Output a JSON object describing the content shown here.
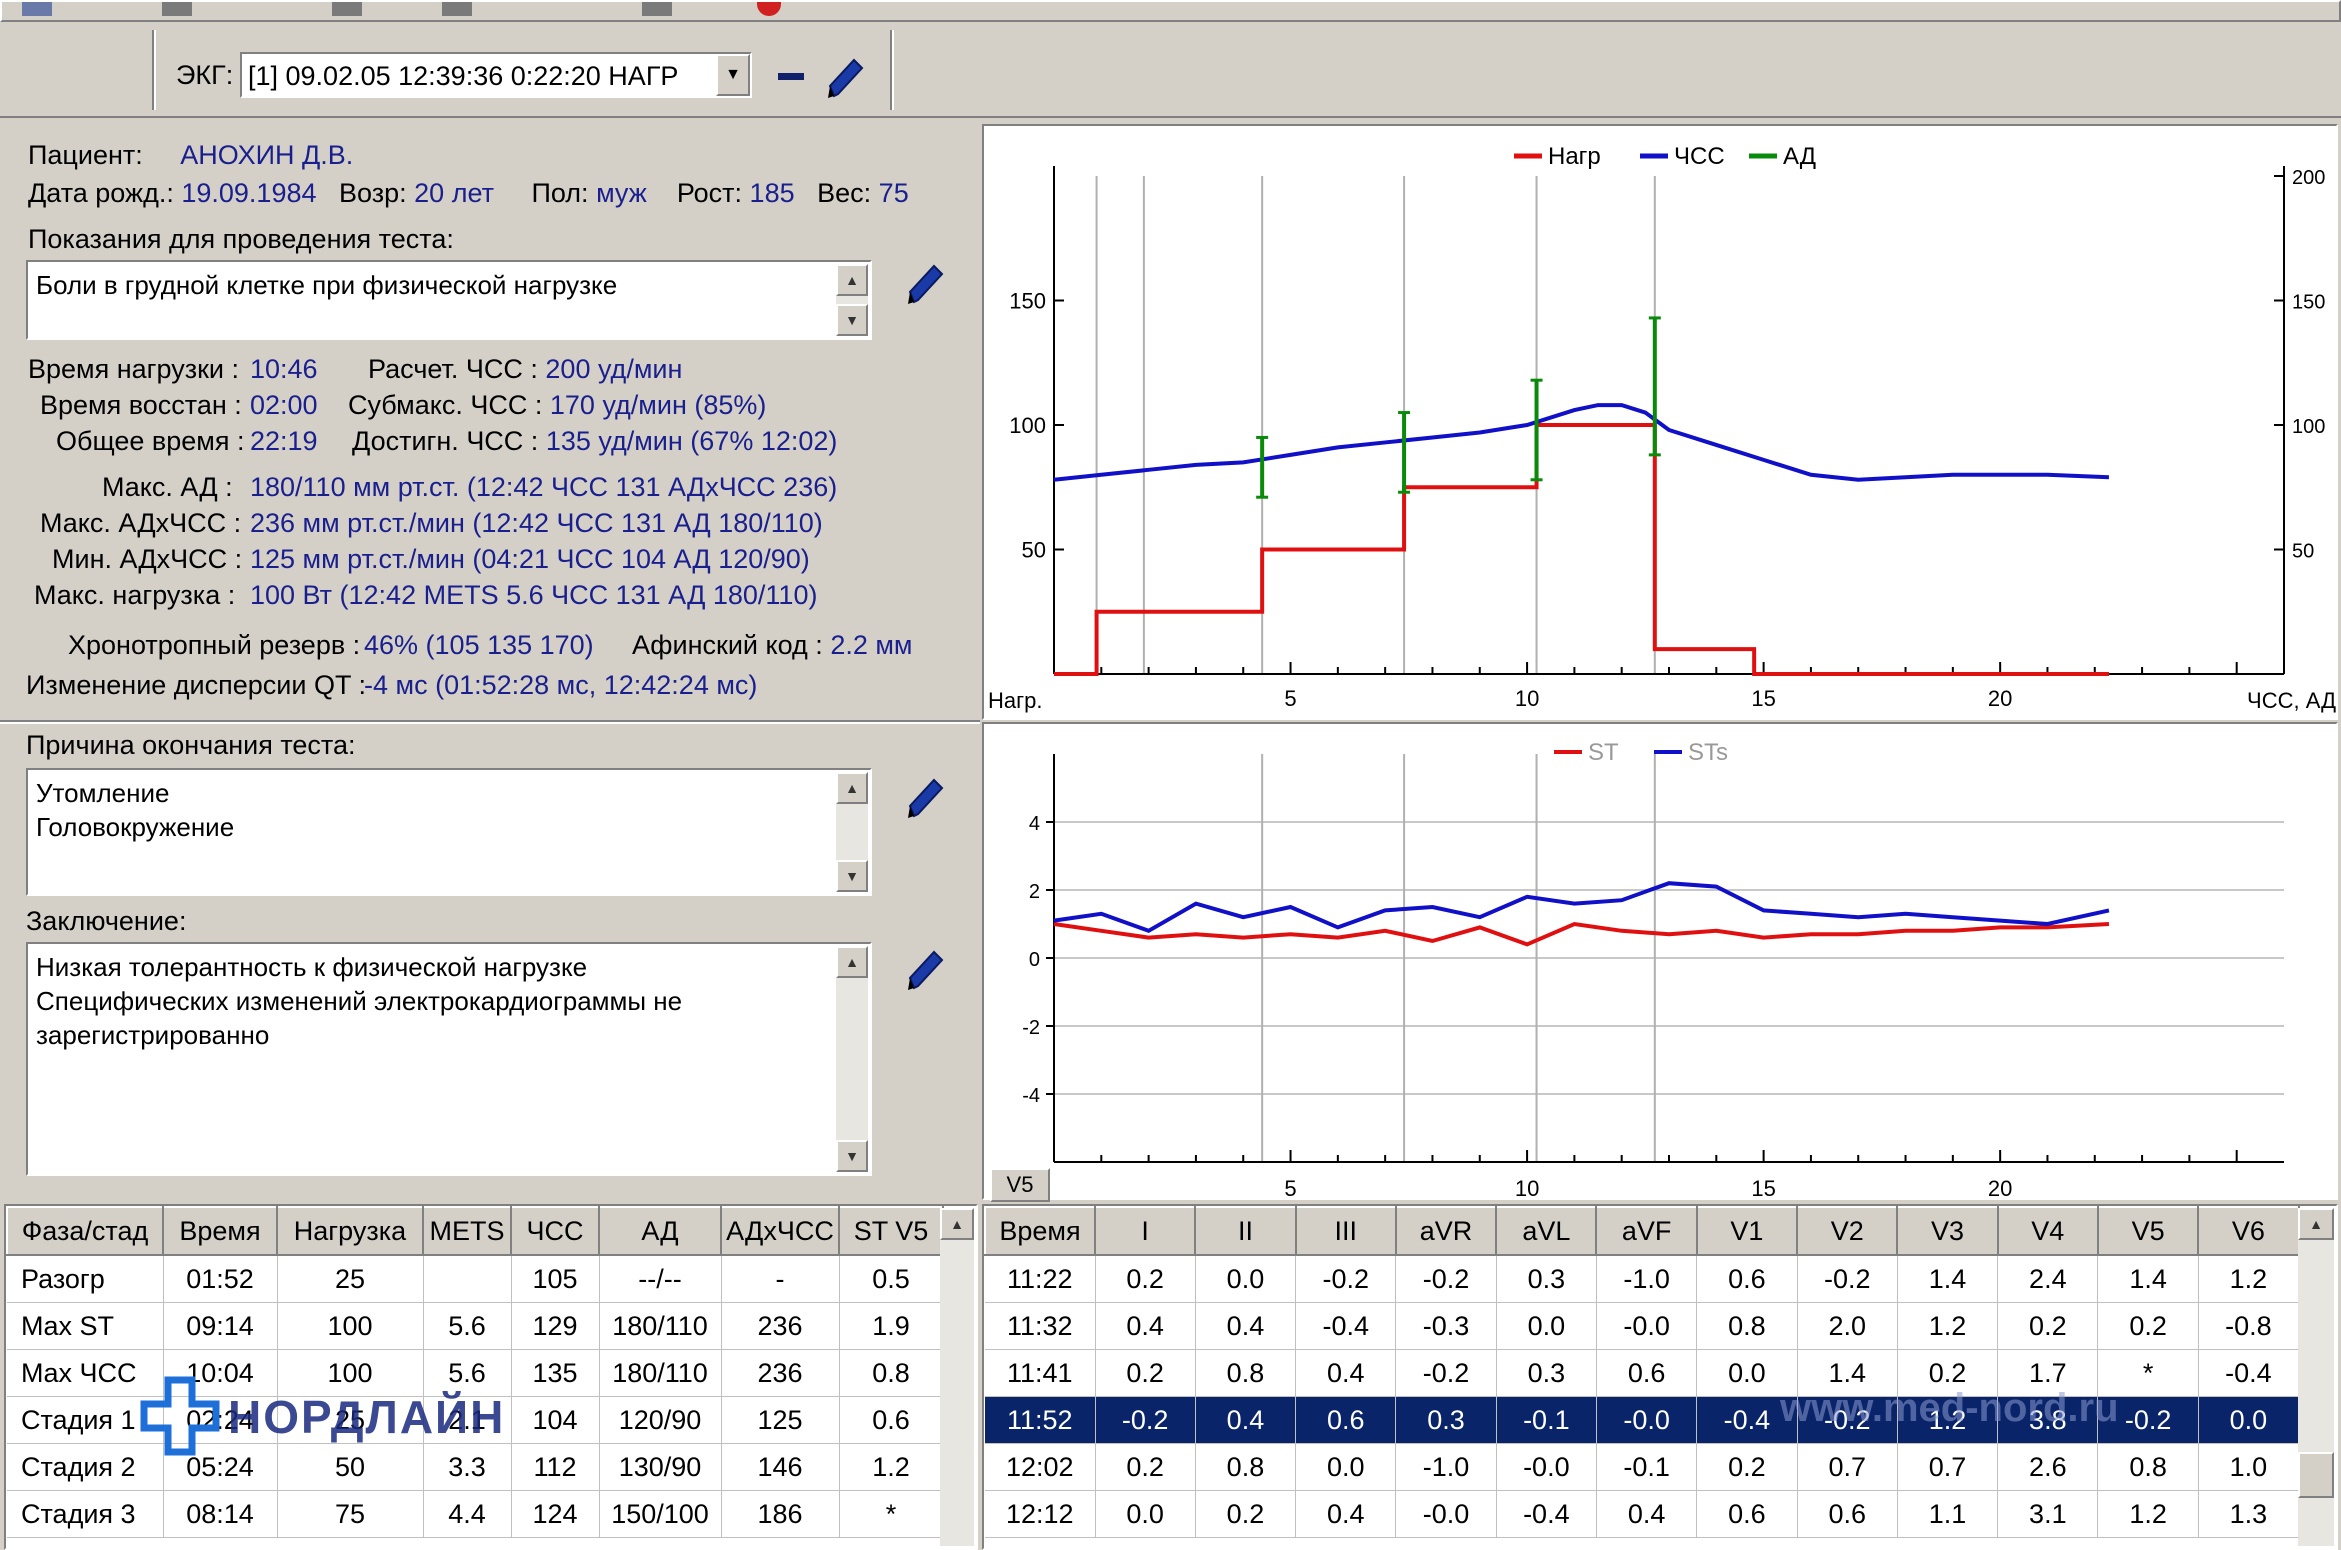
{
  "ecg": {
    "label": "ЭКГ:",
    "selected": "[1] 09.02.05 12:39:36  0:22:20 НАГР"
  },
  "patient": {
    "name_label": "Пациент:",
    "name": "АНОХИН Д.В.",
    "dob_label": "Дата рожд.:",
    "dob": "19.09.1984",
    "age_label": "Возр:",
    "age": "20 лет",
    "sex_label": "Пол:",
    "sex": "муж",
    "height_label": "Рост:",
    "height": "185",
    "weight_label": "Вес:",
    "weight": "75"
  },
  "indications": {
    "label": "Показания для проведения теста:",
    "text": "Боли в грудной клетке при физической нагрузке"
  },
  "stats": {
    "load_time_label": "Время нагрузки :",
    "load_time": "10:46",
    "calc_hr_label": "Расчет. ЧСС :",
    "calc_hr": "200 уд/мин",
    "rec_time_label": "Время восстан :",
    "rec_time": "02:00",
    "submax_label": "Субмакс. ЧСС :",
    "submax": "170 уд/мин (85%)",
    "total_label": "Общее время :",
    "total": "22:19",
    "reached_label": "Достигн. ЧСС :",
    "reached": "135 уд/мин (67% 12:02)",
    "max_bp_label": "Макс. АД :",
    "max_bp": "180/110 мм рт.ст. (12:42 ЧСС 131 АДхЧСС 236)",
    "max_dp_label": "Макс. АДхЧСС :",
    "max_dp": "236 мм рт.ст./мин (12:42 ЧСС 131 АД 180/110)",
    "min_dp_label": "Мин. АДхЧСС :",
    "min_dp": "125 мм рт.ст./мин (04:21 ЧСС 104 АД 120/90)",
    "max_load_label": "Макс. нагрузка :",
    "max_load": "100 Вт (12:42 METS 5.6 ЧСС 131 АД 180/110)",
    "chrono_label": "Хронотропный резерв :",
    "chrono": "46% (105 135 170)",
    "athin_label": "Афинский код :",
    "athin": "2.2 мм",
    "qt_label": "Изменение дисперсии QT :",
    "qt": "-4 мс (01:52:28 мс, 12:42:24 мс)"
  },
  "reason": {
    "label": "Причина окончания теста:",
    "text": "Утомление\nГоловокружение"
  },
  "conclusion": {
    "label": "Заключение:",
    "text": "Низкая толерантность к физической нагрузке\nСпецифических изменений электрокардиограммы не\nзарегистрированно"
  },
  "watermarks": {
    "brand": "НОРДЛАЙН",
    "url": "www.med-nord.ru"
  },
  "stages_table": {
    "columns": [
      "Фаза/стад",
      "Время",
      "Нагрузка",
      "METS",
      "ЧСС",
      "АД",
      "АДхЧСС",
      "ST V5"
    ],
    "rows": [
      [
        "Разогр",
        "01:52",
        "25",
        "",
        "105",
        "--/--",
        "-",
        "0.5"
      ],
      [
        "Max ST",
        "09:14",
        "100",
        "5.6",
        "129",
        "180/110",
        "236",
        "1.9"
      ],
      [
        "Max ЧСС",
        "10:04",
        "100",
        "5.6",
        "135",
        "180/110",
        "236",
        "0.8"
      ],
      [
        "Стадия 1",
        "02:24",
        "25",
        "2.1",
        "104",
        "120/90",
        "125",
        "0.6"
      ],
      [
        "Стадия 2",
        "05:24",
        "50",
        "3.3",
        "112",
        "130/90",
        "146",
        "1.2"
      ],
      [
        "Стадия 3",
        "08:14",
        "75",
        "4.4",
        "124",
        "150/100",
        "186",
        "*"
      ]
    ]
  },
  "leads_table": {
    "columns": [
      "Время",
      "I",
      "II",
      "III",
      "aVR",
      "aVL",
      "aVF",
      "V1",
      "V2",
      "V3",
      "V4",
      "V5",
      "V6"
    ],
    "selected_row": 3,
    "rows": [
      [
        "11:22",
        "0.2",
        "0.0",
        "-0.2",
        "-0.2",
        "0.3",
        "-1.0",
        "0.6",
        "-0.2",
        "1.4",
        "2.4",
        "1.4",
        "1.2"
      ],
      [
        "11:32",
        "0.4",
        "0.4",
        "-0.4",
        "-0.3",
        "0.0",
        "-0.0",
        "0.8",
        "2.0",
        "1.2",
        "0.2",
        "0.2",
        "-0.8"
      ],
      [
        "11:41",
        "0.2",
        "0.8",
        "0.4",
        "-0.2",
        "0.3",
        "0.6",
        "0.0",
        "1.4",
        "0.2",
        "1.7",
        "*",
        "-0.4"
      ],
      [
        "11:52",
        "-0.2",
        "0.4",
        "0.6",
        "0.3",
        "-0.1",
        "-0.0",
        "-0.4",
        "-0.2",
        "1.2",
        "3.8",
        "-0.2",
        "0.0"
      ],
      [
        "12:02",
        "0.2",
        "0.8",
        "0.0",
        "-1.0",
        "-0.0",
        "-0.1",
        "0.2",
        "0.7",
        "0.7",
        "2.6",
        "0.8",
        "1.0"
      ],
      [
        "12:12",
        "0.0",
        "0.2",
        "0.4",
        "-0.0",
        "-0.4",
        "0.4",
        "0.6",
        "0.6",
        "1.1",
        "3.1",
        "1.2",
        "1.3"
      ]
    ]
  },
  "chart_data": [
    {
      "type": "line",
      "legend": [
        "Нагр",
        "ЧСС",
        "АД"
      ],
      "colors": {
        "Нагр": "#e01010",
        "ЧСС": "#1010c8",
        "АД": "#0a8a0a"
      },
      "xlabel_left": "Нагр.",
      "xlabel_right": "ЧСС, АД",
      "x_ticks": [
        5,
        10,
        15,
        20
      ],
      "xlim": [
        0,
        26
      ],
      "y_left_ticks": [
        50,
        100,
        150
      ],
      "ylim_left": [
        0,
        200
      ],
      "y_right_ticks": [
        50,
        100,
        150,
        200
      ],
      "ylim_right": [
        0,
        200
      ],
      "series": [
        {
          "name": "Нагр",
          "x": [
            0,
            0.9,
            0.9,
            4.4,
            4.4,
            7.4,
            7.4,
            10.2,
            10.2,
            12.7,
            12.7,
            14.8,
            14.8,
            22.3
          ],
          "values": [
            0,
            0,
            25,
            25,
            50,
            50,
            75,
            75,
            100,
            100,
            10,
            10,
            0,
            0
          ]
        },
        {
          "name": "ЧСС",
          "x": [
            0,
            1,
            2,
            3,
            4,
            5,
            6,
            7,
            8,
            9,
            10,
            11,
            11.5,
            12,
            12.5,
            13,
            14,
            15,
            16,
            17,
            18,
            19,
            20,
            21,
            22.3
          ],
          "values": [
            78,
            80,
            82,
            84,
            85,
            88,
            91,
            93,
            95,
            97,
            100,
            106,
            108,
            108,
            105,
            98,
            92,
            86,
            80,
            78,
            79,
            80,
            80,
            80,
            79
          ]
        },
        {
          "name": "АД",
          "bars": [
            {
              "x": 4.4,
              "low": 71,
              "high": 95
            },
            {
              "x": 7.4,
              "low": 73,
              "high": 105
            },
            {
              "x": 10.2,
              "low": 78,
              "high": 118
            },
            {
              "x": 12.7,
              "low": 88,
              "high": 143
            }
          ]
        }
      ]
    },
    {
      "type": "line",
      "legend": [
        "ST",
        "STs"
      ],
      "colors": {
        "ST": "#e01010",
        "STs": "#1010c8"
      },
      "lead_label": "V5",
      "x_ticks": [
        5,
        10,
        15,
        20
      ],
      "xlim": [
        0,
        26
      ],
      "y_ticks": [
        4,
        2,
        0,
        -2,
        -4
      ],
      "ylim": [
        -6,
        6
      ],
      "series": [
        {
          "name": "ST",
          "x": [
            0,
            1,
            2,
            3,
            4,
            5,
            6,
            7,
            8,
            9,
            10,
            11,
            12,
            13,
            14,
            15,
            16,
            17,
            18,
            19,
            20,
            21,
            22.3
          ],
          "values": [
            1.0,
            0.8,
            0.6,
            0.7,
            0.6,
            0.7,
            0.6,
            0.8,
            0.5,
            0.9,
            0.4,
            1.0,
            0.8,
            0.7,
            0.8,
            0.6,
            0.7,
            0.7,
            0.8,
            0.8,
            0.9,
            0.9,
            1.0
          ]
        },
        {
          "name": "STs",
          "x": [
            0,
            1,
            2,
            3,
            4,
            5,
            6,
            7,
            8,
            9,
            10,
            11,
            12,
            13,
            14,
            15,
            16,
            17,
            18,
            19,
            20,
            21,
            22.3
          ],
          "values": [
            1.1,
            1.3,
            0.8,
            1.6,
            1.2,
            1.5,
            0.9,
            1.4,
            1.5,
            1.2,
            1.8,
            1.6,
            1.7,
            2.2,
            2.1,
            1.4,
            1.3,
            1.2,
            1.3,
            1.2,
            1.1,
            1.0,
            1.4
          ]
        }
      ]
    }
  ]
}
